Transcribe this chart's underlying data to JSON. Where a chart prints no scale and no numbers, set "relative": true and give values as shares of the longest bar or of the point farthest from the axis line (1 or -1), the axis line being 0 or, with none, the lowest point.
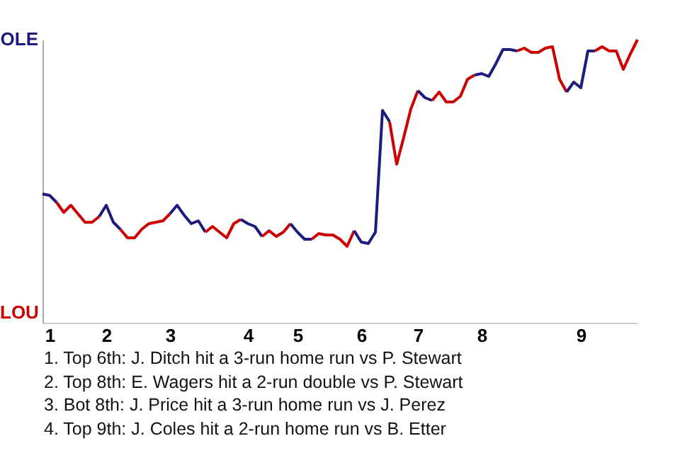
{
  "chart_data": {
    "type": "line",
    "relative": true,
    "categories": [
      null,
      "1",
      null,
      null,
      null,
      null,
      null,
      null,
      null,
      "2",
      null,
      null,
      null,
      null,
      null,
      null,
      null,
      null,
      "3",
      null,
      null,
      null,
      null,
      null,
      null,
      null,
      null,
      null,
      null,
      "4",
      null,
      null,
      null,
      null,
      null,
      null,
      "5",
      null,
      null,
      null,
      null,
      null,
      null,
      null,
      null,
      "6",
      null,
      null,
      null,
      null,
      null,
      null,
      null,
      "7",
      null,
      null,
      null,
      null,
      null,
      null,
      null,
      null,
      "8",
      null,
      null,
      null,
      null,
      null,
      null,
      null,
      null,
      null,
      null,
      null,
      null,
      null,
      "9",
      null,
      null,
      null,
      null,
      null,
      null,
      null,
      null
    ],
    "series": [
      {
        "color": "#1b1b7d",
        "values": [
          0.455,
          0.45,
          0.425,
          null,
          null,
          null,
          null,
          null,
          null,
          null,
          null,
          null,
          null,
          null,
          null,
          null,
          null,
          null,
          null,
          null,
          null,
          null,
          null,
          null,
          null,
          null,
          null,
          null,
          null,
          null,
          null,
          null,
          null,
          null,
          null,
          null,
          null,
          null,
          null,
          null,
          null,
          null,
          null,
          null,
          null,
          null,
          null,
          null,
          null,
          null,
          null,
          null,
          null,
          null,
          null,
          null,
          null,
          null,
          null,
          null,
          null,
          null,
          null,
          null,
          null,
          null,
          null,
          null,
          null,
          null,
          null,
          null,
          null,
          null,
          null,
          null,
          null,
          null,
          null,
          null,
          null,
          null,
          null,
          null,
          null
        ]
      },
      {
        "color": "#cc0000",
        "values": [
          null,
          null,
          0.425,
          0.39,
          0.415,
          0.385,
          0.355,
          0.355,
          0.375,
          null,
          null,
          null,
          null,
          null,
          null,
          null,
          null,
          null,
          null,
          null,
          null,
          null,
          null,
          null,
          null,
          null,
          null,
          null,
          null,
          null,
          null,
          null,
          null,
          null,
          null,
          null,
          null,
          null,
          null,
          null,
          null,
          null,
          null,
          null,
          null,
          null,
          null,
          null,
          null,
          null,
          null,
          null,
          null,
          null,
          null,
          null,
          null,
          null,
          null,
          null,
          null,
          null,
          null,
          null,
          null,
          null,
          null,
          null,
          null,
          null,
          null,
          null,
          null,
          null,
          null,
          null,
          null,
          null,
          null,
          null,
          null,
          null,
          null,
          null,
          null
        ]
      },
      {
        "color": "#1c1b7d",
        "values": [
          null,
          null,
          null,
          null,
          null,
          null,
          null,
          null,
          0.375,
          0.415,
          0.355,
          0.33,
          null,
          null,
          null,
          null,
          null,
          null,
          null,
          null,
          null,
          null,
          null,
          null,
          null,
          null,
          null,
          null,
          null,
          null,
          null,
          null,
          null,
          null,
          null,
          null,
          null,
          null,
          null,
          null,
          null,
          null,
          null,
          null,
          null,
          null,
          null,
          null,
          null,
          null,
          null,
          null,
          null,
          null,
          null,
          null,
          null,
          null,
          null,
          null,
          null,
          null,
          null,
          null,
          null,
          null,
          null,
          null,
          null,
          null,
          null,
          null,
          null,
          null,
          null,
          null,
          null,
          null,
          null,
          null,
          null,
          null,
          null,
          null,
          null
        ]
      },
      {
        "color": "#cd0000",
        "values": [
          null,
          null,
          null,
          null,
          null,
          null,
          null,
          null,
          null,
          null,
          null,
          0.33,
          0.3,
          0.3,
          0.33,
          0.35,
          0.355,
          0.36,
          0.385,
          null,
          null,
          null,
          null,
          null,
          null,
          null,
          null,
          null,
          null,
          null,
          null,
          null,
          null,
          null,
          null,
          null,
          null,
          null,
          null,
          null,
          null,
          null,
          null,
          null,
          null,
          null,
          null,
          null,
          null,
          null,
          null,
          null,
          null,
          null,
          null,
          null,
          null,
          null,
          null,
          null,
          null,
          null,
          null,
          null,
          null,
          null,
          null,
          null,
          null,
          null,
          null,
          null,
          null,
          null,
          null,
          null,
          null,
          null,
          null,
          null,
          null,
          null,
          null,
          null,
          null
        ]
      },
      {
        "color": "#1b1c7d",
        "values": [
          null,
          null,
          null,
          null,
          null,
          null,
          null,
          null,
          null,
          null,
          null,
          null,
          null,
          null,
          null,
          null,
          null,
          null,
          0.385,
          0.415,
          0.38,
          0.35,
          0.36,
          0.32,
          null,
          null,
          null,
          null,
          null,
          null,
          null,
          null,
          null,
          null,
          null,
          null,
          null,
          null,
          null,
          null,
          null,
          null,
          null,
          null,
          null,
          null,
          null,
          null,
          null,
          null,
          null,
          null,
          null,
          null,
          null,
          null,
          null,
          null,
          null,
          null,
          null,
          null,
          null,
          null,
          null,
          null,
          null,
          null,
          null,
          null,
          null,
          null,
          null,
          null,
          null,
          null,
          null,
          null,
          null,
          null,
          null,
          null,
          null,
          null,
          null
        ]
      },
      {
        "color": "#cc0100",
        "values": [
          null,
          null,
          null,
          null,
          null,
          null,
          null,
          null,
          null,
          null,
          null,
          null,
          null,
          null,
          null,
          null,
          null,
          null,
          null,
          null,
          null,
          null,
          null,
          0.32,
          0.34,
          0.32,
          0.3,
          0.35,
          0.365,
          null,
          null,
          null,
          null,
          null,
          null,
          null,
          null,
          null,
          null,
          null,
          null,
          null,
          null,
          null,
          null,
          null,
          null,
          null,
          null,
          null,
          null,
          null,
          null,
          null,
          null,
          null,
          null,
          null,
          null,
          null,
          null,
          null,
          null,
          null,
          null,
          null,
          null,
          null,
          null,
          null,
          null,
          null,
          null,
          null,
          null,
          null,
          null,
          null,
          null,
          null,
          null,
          null,
          null,
          null,
          null
        ]
      },
      {
        "color": "#1b1b7e",
        "values": [
          null,
          null,
          null,
          null,
          null,
          null,
          null,
          null,
          null,
          null,
          null,
          null,
          null,
          null,
          null,
          null,
          null,
          null,
          null,
          null,
          null,
          null,
          null,
          null,
          null,
          null,
          null,
          null,
          0.365,
          0.35,
          0.34,
          0.305,
          null,
          null,
          null,
          null,
          null,
          null,
          null,
          null,
          null,
          null,
          null,
          null,
          null,
          null,
          null,
          null,
          null,
          null,
          null,
          null,
          null,
          null,
          null,
          null,
          null,
          null,
          null,
          null,
          null,
          null,
          null,
          null,
          null,
          null,
          null,
          null,
          null,
          null,
          null,
          null,
          null,
          null,
          null,
          null,
          null,
          null,
          null,
          null,
          null,
          null,
          null,
          null,
          null
        ]
      },
      {
        "color": "#cc0001",
        "values": [
          null,
          null,
          null,
          null,
          null,
          null,
          null,
          null,
          null,
          null,
          null,
          null,
          null,
          null,
          null,
          null,
          null,
          null,
          null,
          null,
          null,
          null,
          null,
          null,
          null,
          null,
          null,
          null,
          null,
          null,
          null,
          0.305,
          0.325,
          0.305,
          0.32,
          0.35,
          null,
          null,
          null,
          null,
          null,
          null,
          null,
          null,
          null,
          null,
          null,
          null,
          null,
          null,
          null,
          null,
          null,
          null,
          null,
          null,
          null,
          null,
          null,
          null,
          null,
          null,
          null,
          null,
          null,
          null,
          null,
          null,
          null,
          null,
          null,
          null,
          null,
          null,
          null,
          null,
          null,
          null,
          null,
          null,
          null,
          null,
          null,
          null,
          null
        ]
      },
      {
        "color": "#1c1c7d",
        "values": [
          null,
          null,
          null,
          null,
          null,
          null,
          null,
          null,
          null,
          null,
          null,
          null,
          null,
          null,
          null,
          null,
          null,
          null,
          null,
          null,
          null,
          null,
          null,
          null,
          null,
          null,
          null,
          null,
          null,
          null,
          null,
          null,
          null,
          null,
          null,
          0.35,
          0.32,
          0.295,
          0.295,
          null,
          null,
          null,
          null,
          null,
          null,
          null,
          null,
          null,
          null,
          null,
          null,
          null,
          null,
          null,
          null,
          null,
          null,
          null,
          null,
          null,
          null,
          null,
          null,
          null,
          null,
          null,
          null,
          null,
          null,
          null,
          null,
          null,
          null,
          null,
          null,
          null,
          null,
          null,
          null,
          null,
          null,
          null,
          null,
          null,
          null
        ]
      },
      {
        "color": "#cd0100",
        "values": [
          null,
          null,
          null,
          null,
          null,
          null,
          null,
          null,
          null,
          null,
          null,
          null,
          null,
          null,
          null,
          null,
          null,
          null,
          null,
          null,
          null,
          null,
          null,
          null,
          null,
          null,
          null,
          null,
          null,
          null,
          null,
          null,
          null,
          null,
          null,
          null,
          null,
          null,
          0.295,
          0.315,
          0.31,
          0.31,
          0.295,
          0.27,
          0.325,
          null,
          null,
          null,
          null,
          null,
          null,
          null,
          null,
          null,
          null,
          null,
          null,
          null,
          null,
          null,
          null,
          null,
          null,
          null,
          null,
          null,
          null,
          null,
          null,
          null,
          null,
          null,
          null,
          null,
          null,
          null,
          null,
          null,
          null,
          null,
          null,
          null,
          null,
          null,
          null
        ]
      },
      {
        "color": "#1c1b7e",
        "values": [
          null,
          null,
          null,
          null,
          null,
          null,
          null,
          null,
          null,
          null,
          null,
          null,
          null,
          null,
          null,
          null,
          null,
          null,
          null,
          null,
          null,
          null,
          null,
          null,
          null,
          null,
          null,
          null,
          null,
          null,
          null,
          null,
          null,
          null,
          null,
          null,
          null,
          null,
          null,
          null,
          null,
          null,
          null,
          null,
          0.325,
          0.285,
          0.28,
          0.32,
          0.75,
          0.71,
          null,
          null,
          null,
          null,
          null,
          null,
          null,
          null,
          null,
          null,
          null,
          null,
          null,
          null,
          null,
          null,
          null,
          null,
          null,
          null,
          null,
          null,
          null,
          null,
          null,
          null,
          null,
          null,
          null,
          null,
          null,
          null,
          null,
          null,
          null
        ]
      },
      {
        "color": "#cd0001",
        "values": [
          null,
          null,
          null,
          null,
          null,
          null,
          null,
          null,
          null,
          null,
          null,
          null,
          null,
          null,
          null,
          null,
          null,
          null,
          null,
          null,
          null,
          null,
          null,
          null,
          null,
          null,
          null,
          null,
          null,
          null,
          null,
          null,
          null,
          null,
          null,
          null,
          null,
          null,
          null,
          null,
          null,
          null,
          null,
          null,
          null,
          null,
          null,
          null,
          null,
          0.71,
          0.56,
          0.655,
          0.755,
          0.82,
          null,
          null,
          null,
          null,
          null,
          null,
          null,
          null,
          null,
          null,
          null,
          null,
          null,
          null,
          null,
          null,
          null,
          null,
          null,
          null,
          null,
          null,
          null,
          null,
          null,
          null,
          null,
          null,
          null,
          null,
          null
        ]
      },
      {
        "color": "#1b1c7e",
        "values": [
          null,
          null,
          null,
          null,
          null,
          null,
          null,
          null,
          null,
          null,
          null,
          null,
          null,
          null,
          null,
          null,
          null,
          null,
          null,
          null,
          null,
          null,
          null,
          null,
          null,
          null,
          null,
          null,
          null,
          null,
          null,
          null,
          null,
          null,
          null,
          null,
          null,
          null,
          null,
          null,
          null,
          null,
          null,
          null,
          null,
          null,
          null,
          null,
          null,
          null,
          null,
          null,
          null,
          0.82,
          0.795,
          0.785,
          null,
          null,
          null,
          null,
          null,
          null,
          null,
          null,
          null,
          null,
          null,
          null,
          null,
          null,
          null,
          null,
          null,
          null,
          null,
          null,
          null,
          null,
          null,
          null,
          null,
          null,
          null,
          null,
          null
        ]
      },
      {
        "color": "#cc0101",
        "values": [
          null,
          null,
          null,
          null,
          null,
          null,
          null,
          null,
          null,
          null,
          null,
          null,
          null,
          null,
          null,
          null,
          null,
          null,
          null,
          null,
          null,
          null,
          null,
          null,
          null,
          null,
          null,
          null,
          null,
          null,
          null,
          null,
          null,
          null,
          null,
          null,
          null,
          null,
          null,
          null,
          null,
          null,
          null,
          null,
          null,
          null,
          null,
          null,
          null,
          null,
          null,
          null,
          null,
          null,
          null,
          0.785,
          0.815,
          0.78,
          0.78,
          0.8,
          0.86,
          0.875,
          null,
          null,
          null,
          null,
          null,
          null,
          null,
          null,
          null,
          null,
          null,
          null,
          null,
          null,
          null,
          null,
          null,
          null,
          null,
          null,
          null,
          null,
          null
        ]
      },
      {
        "color": "#1c1c7e",
        "values": [
          null,
          null,
          null,
          null,
          null,
          null,
          null,
          null,
          null,
          null,
          null,
          null,
          null,
          null,
          null,
          null,
          null,
          null,
          null,
          null,
          null,
          null,
          null,
          null,
          null,
          null,
          null,
          null,
          null,
          null,
          null,
          null,
          null,
          null,
          null,
          null,
          null,
          null,
          null,
          null,
          null,
          null,
          null,
          null,
          null,
          null,
          null,
          null,
          null,
          null,
          null,
          null,
          null,
          null,
          null,
          null,
          null,
          null,
          null,
          null,
          null,
          0.875,
          0.88,
          0.87,
          0.915,
          0.965,
          0.965,
          0.96,
          null,
          null,
          null,
          null,
          null,
          null,
          null,
          null,
          null,
          null,
          null,
          null,
          null,
          null,
          null,
          null,
          null
        ]
      },
      {
        "color": "#cd0101",
        "values": [
          null,
          null,
          null,
          null,
          null,
          null,
          null,
          null,
          null,
          null,
          null,
          null,
          null,
          null,
          null,
          null,
          null,
          null,
          null,
          null,
          null,
          null,
          null,
          null,
          null,
          null,
          null,
          null,
          null,
          null,
          null,
          null,
          null,
          null,
          null,
          null,
          null,
          null,
          null,
          null,
          null,
          null,
          null,
          null,
          null,
          null,
          null,
          null,
          null,
          null,
          null,
          null,
          null,
          null,
          null,
          null,
          null,
          null,
          null,
          null,
          null,
          null,
          null,
          null,
          null,
          null,
          null,
          0.96,
          0.97,
          0.955,
          0.955,
          0.97,
          0.975,
          0.86,
          0.815,
          null,
          null,
          null,
          null,
          null,
          null,
          null,
          null,
          null,
          null
        ]
      },
      {
        "color": "#1d1b7d",
        "values": [
          null,
          null,
          null,
          null,
          null,
          null,
          null,
          null,
          null,
          null,
          null,
          null,
          null,
          null,
          null,
          null,
          null,
          null,
          null,
          null,
          null,
          null,
          null,
          null,
          null,
          null,
          null,
          null,
          null,
          null,
          null,
          null,
          null,
          null,
          null,
          null,
          null,
          null,
          null,
          null,
          null,
          null,
          null,
          null,
          null,
          null,
          null,
          null,
          null,
          null,
          null,
          null,
          null,
          null,
          null,
          null,
          null,
          null,
          null,
          null,
          null,
          null,
          null,
          null,
          null,
          null,
          null,
          null,
          null,
          null,
          null,
          null,
          null,
          null,
          0.815,
          0.85,
          0.83,
          0.96,
          0.96,
          null,
          null,
          null,
          null,
          null,
          null
        ]
      },
      {
        "color": "#ce0000",
        "values": [
          null,
          null,
          null,
          null,
          null,
          null,
          null,
          null,
          null,
          null,
          null,
          null,
          null,
          null,
          null,
          null,
          null,
          null,
          null,
          null,
          null,
          null,
          null,
          null,
          null,
          null,
          null,
          null,
          null,
          null,
          null,
          null,
          null,
          null,
          null,
          null,
          null,
          null,
          null,
          null,
          null,
          null,
          null,
          null,
          null,
          null,
          null,
          null,
          null,
          null,
          null,
          null,
          null,
          null,
          null,
          null,
          null,
          null,
          null,
          null,
          null,
          null,
          null,
          null,
          null,
          null,
          null,
          null,
          null,
          null,
          null,
          null,
          null,
          null,
          null,
          null,
          null,
          null,
          0.96,
          0.975,
          0.96,
          0.96,
          0.895,
          0.95,
          1
        ]
      }
    ],
    "annotations": [
      "OLE",
      "LOU",
      "1. Top 6th: J. Ditch hit a 3-run home run vs P. Stewart",
      "2. Top 8th: E. Wagers hit a 2-run double vs P. Stewart",
      "3. Bot 8th: J. Price hit a 3-run home run vs J. Perez",
      "4. Top 9th: J. Coles hit a 2-run home run vs B. Etter"
    ]
  }
}
